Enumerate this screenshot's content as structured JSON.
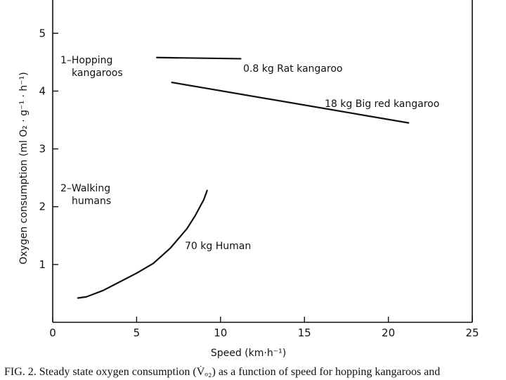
{
  "chart_data": {
    "type": "line",
    "xlabel": "Speed (km·h⁻¹)",
    "ylabel": "Oxygen consumption (ml O₂ · g⁻¹ · h⁻¹)",
    "xlim": [
      0,
      25
    ],
    "ylim": [
      0,
      5.6
    ],
    "x_ticks": [
      0,
      5,
      10,
      15,
      20,
      25
    ],
    "y_ticks": [
      1,
      2,
      3,
      4,
      5
    ],
    "grid": false,
    "groups": [
      {
        "label_line1": "1–Hopping",
        "label_line2": "kangaroos"
      },
      {
        "label_line1": "2–Walking",
        "label_line2": "humans"
      }
    ],
    "series": [
      {
        "name": "0.8 kg  Rat kangaroo",
        "x": [
          6.2,
          11.2
        ],
        "y": [
          4.58,
          4.56
        ]
      },
      {
        "name": "18 kg  Big red kangaroo",
        "x": [
          7.1,
          21.2
        ],
        "y": [
          4.15,
          3.45
        ]
      },
      {
        "name": "70 kg  Human",
        "x": [
          1.5,
          2.0,
          3.0,
          4.0,
          5.0,
          6.0,
          7.0,
          8.0,
          8.5,
          9.0,
          9.2
        ],
        "y": [
          0.42,
          0.44,
          0.55,
          0.7,
          0.85,
          1.02,
          1.28,
          1.62,
          1.85,
          2.12,
          2.28
        ]
      }
    ]
  },
  "caption": "FIG. 2. Steady state oxygen consumption (V̇ₒ₂) as a function of speed for hopping kangaroos and"
}
